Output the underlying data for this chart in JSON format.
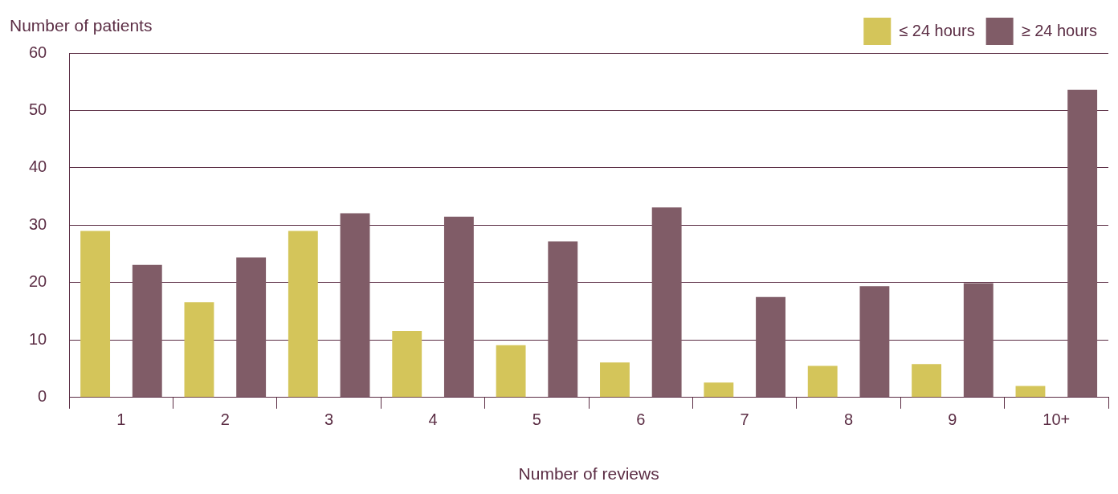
{
  "chart_data": {
    "type": "bar",
    "ylabel": "Number of patients",
    "xlabel": "Number of reviews",
    "categories": [
      "1",
      "2",
      "3",
      "4",
      "5",
      "6",
      "7",
      "8",
      "9",
      "10+"
    ],
    "series": [
      {
        "name": "≤ 24 hours",
        "color": "#d4c55a",
        "values": [
          29,
          16.6,
          29,
          11.6,
          9.1,
          6.1,
          2.6,
          5.5,
          5.8,
          2.0
        ]
      },
      {
        "name": "≥ 24 hours",
        "color": "#805c67",
        "values": [
          23.1,
          24.4,
          32.1,
          31.5,
          27.2,
          33.1,
          17.5,
          19.4,
          19.9,
          53.6
        ]
      }
    ],
    "ylim": [
      0,
      60
    ],
    "yticks": [
      0,
      10,
      20,
      30,
      40,
      50,
      60
    ],
    "grid": "y",
    "legend": "top right"
  }
}
